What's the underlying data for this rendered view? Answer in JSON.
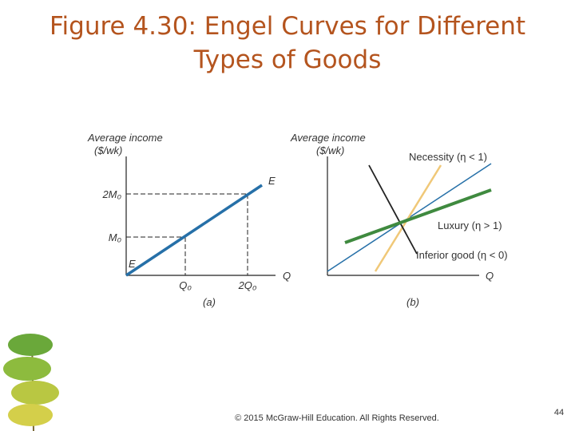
{
  "header": {
    "title": "Figure 4.30: Engel Curves for Different Types of Goods"
  },
  "panel_a": {
    "y_label_1": "Average income",
    "y_label_2": "($/wk)",
    "y_tick_upper": "2M₀",
    "y_tick_lower": "M₀",
    "x_tick_left": "Q₀",
    "x_tick_right": "2Q₀",
    "x_label": "Q",
    "curve_label_top": "E",
    "curve_label_bottom": "E",
    "caption": "(a)"
  },
  "panel_b": {
    "y_label_1": "Average income",
    "y_label_2": "($/wk)",
    "necessity": "Necessity (η < 1)",
    "luxury": "Luxury (η > 1)",
    "inferior": "Inferior good (η < 0)",
    "x_label": "Q",
    "caption": "(b)"
  },
  "footer": {
    "copyright": "© 2015 McGraw-Hill Education. All Rights Reserved.",
    "page_number": "44"
  }
}
